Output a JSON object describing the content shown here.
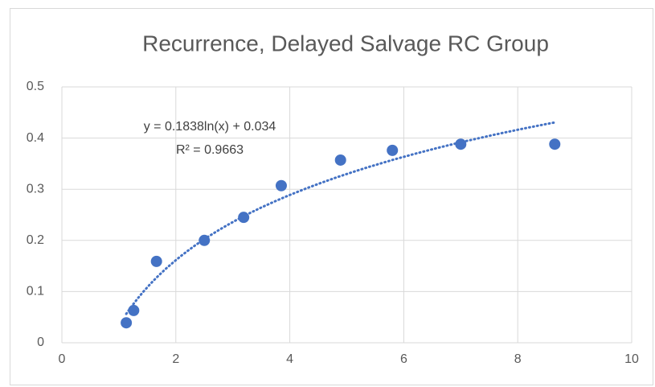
{
  "chart_data": {
    "type": "scatter",
    "title": "Recurrence, Delayed Salvage RC Group",
    "series": [
      {
        "name": "Recurrence",
        "color": "#4472c4",
        "x": [
          1.13,
          1.26,
          1.66,
          2.5,
          3.19,
          3.85,
          4.89,
          5.8,
          7.0,
          8.65
        ],
        "values": [
          0.039,
          0.063,
          0.159,
          0.2,
          0.245,
          0.307,
          0.357,
          0.376,
          0.388,
          0.388
        ]
      }
    ],
    "trendline": {
      "type": "log",
      "a": 0.1838,
      "b": 0.034,
      "color": "#4472c4",
      "equation": "y = 0.1838ln(x) + 0.034",
      "r2": "R² = 0.9663"
    },
    "xlim": [
      0,
      10
    ],
    "xticks": [
      0,
      2,
      4,
      6,
      8,
      10
    ],
    "ylim": [
      0,
      0.5
    ],
    "yticks": [
      0,
      0.1,
      0.2,
      0.3,
      0.4,
      0.5
    ],
    "grid": true
  }
}
